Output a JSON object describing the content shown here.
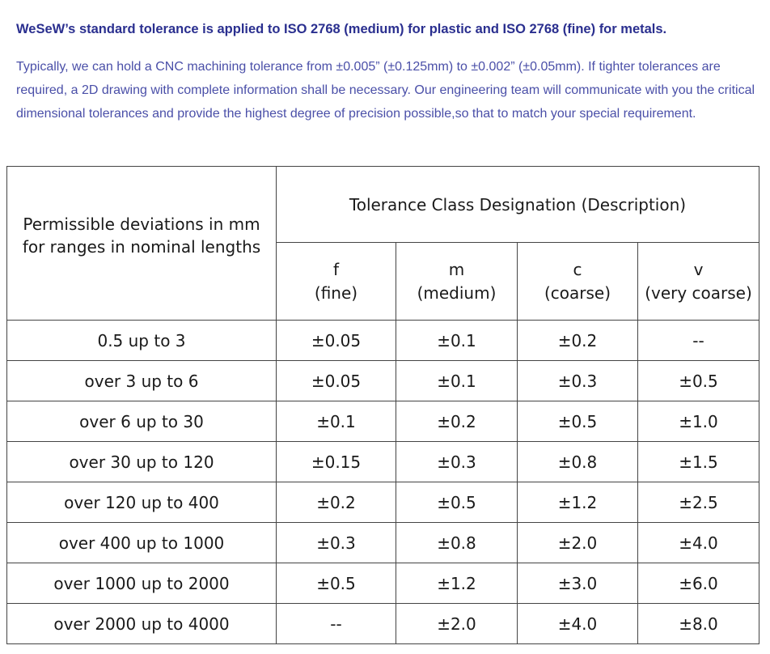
{
  "intro": {
    "headline": "WeSeW’s standard tolerance is applied to ISO 2768 (medium) for plastic and ISO 2768 (fine) for metals.",
    "paragraph": "Typically, we can hold a CNC machining tolerance from ±0.005” (±0.125mm) to ±0.002” (±0.05mm). If tighter tolerances are required, a 2D drawing with complete information shall be necessary. Our engineering team will communicate with you the critical dimensional tolerances and provide the highest degree of precision possible,so that to match your special requirement."
  },
  "table": {
    "left_header_line1": "Permissible deviations in mm",
    "left_header_line2": "for ranges in nominal lengths",
    "group_header": "Tolerance Class Designation (Description)",
    "classes": [
      {
        "code": "f",
        "desc": "(fine)"
      },
      {
        "code": "m",
        "desc": "(medium)"
      },
      {
        "code": "c",
        "desc": "(coarse)"
      },
      {
        "code": "v",
        "desc": "(very coarse)"
      }
    ],
    "rows": [
      {
        "range": "0.5 up to 3",
        "f": "±0.05",
        "m": "±0.1",
        "c": "±0.2",
        "v": "--"
      },
      {
        "range": "over 3 up to 6",
        "f": "±0.05",
        "m": "±0.1",
        "c": "±0.3",
        "v": "±0.5"
      },
      {
        "range": "over 6 up to 30",
        "f": "±0.1",
        "m": "±0.2",
        "c": "±0.5",
        "v": "±1.0"
      },
      {
        "range": "over 30 up to 120",
        "f": "±0.15",
        "m": "±0.3",
        "c": "±0.8",
        "v": "±1.5"
      },
      {
        "range": "over 120 up to 400",
        "f": "±0.2",
        "m": "±0.5",
        "c": "±1.2",
        "v": "±2.5"
      },
      {
        "range": "over 400 up to 1000",
        "f": "±0.3",
        "m": "±0.8",
        "c": "±2.0",
        "v": "±4.0"
      },
      {
        "range": "over 1000 up to 2000",
        "f": "±0.5",
        "m": "±1.2",
        "c": "±3.0",
        "v": "±6.0"
      },
      {
        "range": "over 2000 up to 4000",
        "f": "--",
        "m": "±2.0",
        "c": "±4.0",
        "v": "±8.0"
      }
    ]
  }
}
